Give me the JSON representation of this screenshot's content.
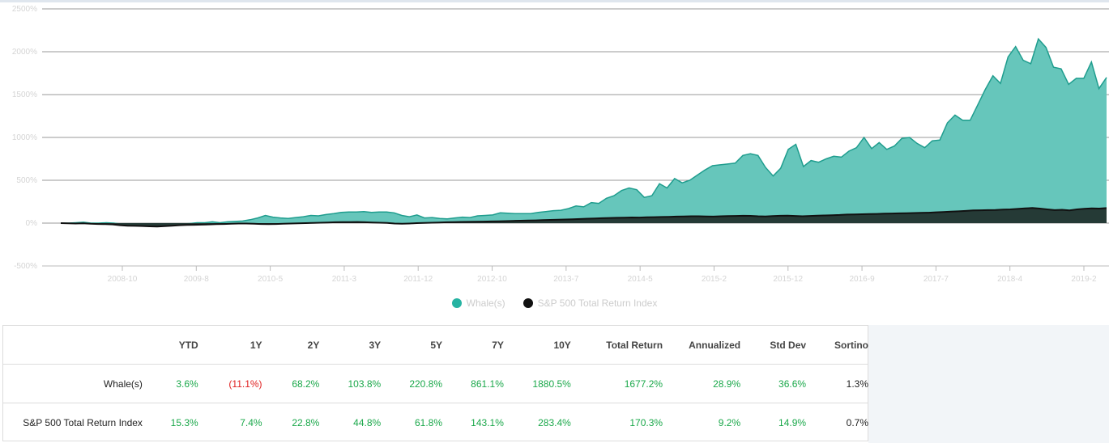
{
  "chart_data": {
    "type": "area",
    "title": "",
    "xlabel": "",
    "ylabel": "",
    "ylim": [
      -500,
      2500
    ],
    "y_ticks": [
      -500,
      0,
      500,
      1000,
      1500,
      2000,
      2500
    ],
    "y_tick_labels": [
      "-500%",
      "0%",
      "500%",
      "1000%",
      "1500%",
      "2000%",
      "2500%"
    ],
    "x_ticks": [
      "2008-10",
      "2009-8",
      "2010-5",
      "2011-3",
      "2011-12",
      "2012-10",
      "2013-7",
      "2014-5",
      "2015-2",
      "2015-12",
      "2016-9",
      "2017-7",
      "2018-4",
      "2019-2"
    ],
    "grid": "horizontal",
    "legend_position": "bottom",
    "series": [
      {
        "name": "Whale(s)",
        "color": "#66c6bb",
        "line_color": "#1f9d8e",
        "values": [
          0,
          0,
          5,
          10,
          0,
          0,
          5,
          0,
          -10,
          -10,
          -15,
          -10,
          -20,
          -25,
          -20,
          -15,
          -10,
          -5,
          5,
          5,
          15,
          5,
          15,
          20,
          25,
          40,
          60,
          90,
          70,
          60,
          55,
          65,
          75,
          90,
          85,
          100,
          110,
          125,
          130,
          130,
          135,
          125,
          130,
          130,
          120,
          90,
          75,
          95,
          60,
          65,
          55,
          50,
          60,
          70,
          65,
          85,
          90,
          95,
          120,
          115,
          110,
          110,
          110,
          125,
          135,
          145,
          150,
          170,
          200,
          190,
          240,
          230,
          290,
          320,
          380,
          410,
          390,
          300,
          320,
          460,
          410,
          520,
          470,
          500,
          560,
          620,
          670,
          680,
          690,
          700,
          790,
          810,
          790,
          650,
          550,
          640,
          860,
          920,
          660,
          730,
          710,
          750,
          780,
          770,
          840,
          880,
          1000,
          870,
          940,
          860,
          900,
          990,
          1000,
          930,
          880,
          960,
          970,
          1170,
          1260,
          1200,
          1200,
          1380,
          1560,
          1720,
          1630,
          1940,
          2060,
          1900,
          1860,
          2150,
          2050,
          1820,
          1800,
          1620,
          1690,
          1690,
          1880,
          1570,
          1700
        ],
        "start": "2008-1"
      },
      {
        "name": "S&P 500 Total Return Index",
        "color": "#253a36",
        "line_color": "#111111",
        "values": [
          0,
          -2,
          -5,
          -3,
          -8,
          -10,
          -12,
          -15,
          -25,
          -30,
          -32,
          -34,
          -38,
          -40,
          -35,
          -30,
          -25,
          -22,
          -20,
          -18,
          -15,
          -12,
          -10,
          -8,
          -5,
          -5,
          -8,
          -10,
          -12,
          -10,
          -8,
          -5,
          -3,
          0,
          2,
          5,
          8,
          10,
          12,
          12,
          13,
          10,
          8,
          5,
          2,
          -5,
          -8,
          -5,
          0,
          3,
          5,
          8,
          10,
          12,
          14,
          15,
          16,
          18,
          20,
          22,
          24,
          26,
          28,
          30,
          32,
          35,
          38,
          40,
          42,
          45,
          48,
          52,
          55,
          58,
          60,
          62,
          64,
          66,
          65,
          68,
          70,
          72,
          74,
          76,
          78,
          80,
          80,
          78,
          76,
          80,
          82,
          84,
          86,
          85,
          80,
          78,
          82,
          86,
          88,
          84,
          80,
          84,
          88,
          90,
          92,
          95,
          100,
          102,
          104,
          106,
          108,
          110,
          112,
          114,
          116,
          118,
          120,
          122,
          126,
          130,
          134,
          138,
          142,
          148,
          150,
          152,
          154,
          158,
          160,
          166,
          172,
          176,
          170,
          160,
          152,
          156,
          148,
          160,
          168,
          172,
          170,
          175
        ],
        "start": "2008-1"
      }
    ]
  },
  "table": {
    "headers": [
      "",
      "YTD",
      "1Y",
      "2Y",
      "3Y",
      "5Y",
      "7Y",
      "10Y",
      "Total Return",
      "Annualized",
      "Std Dev",
      "Sortino"
    ],
    "rows": [
      {
        "name": "Whale(s)",
        "cells": [
          {
            "v": "3.6%",
            "c": "pos"
          },
          {
            "v": "(11.1%)",
            "c": "neg"
          },
          {
            "v": "68.2%",
            "c": "pos"
          },
          {
            "v": "103.8%",
            "c": "pos"
          },
          {
            "v": "220.8%",
            "c": "pos"
          },
          {
            "v": "861.1%",
            "c": "pos"
          },
          {
            "v": "1880.5%",
            "c": "pos"
          },
          {
            "v": "1677.2%",
            "c": "pos"
          },
          {
            "v": "28.9%",
            "c": "pos"
          },
          {
            "v": "36.6%",
            "c": "pos"
          },
          {
            "v": "1.3%",
            "c": "neu"
          }
        ]
      },
      {
        "name": "S&P 500 Total Return Index",
        "cells": [
          {
            "v": "15.3%",
            "c": "pos"
          },
          {
            "v": "7.4%",
            "c": "pos"
          },
          {
            "v": "22.8%",
            "c": "pos"
          },
          {
            "v": "44.8%",
            "c": "pos"
          },
          {
            "v": "61.8%",
            "c": "pos"
          },
          {
            "v": "143.1%",
            "c": "pos"
          },
          {
            "v": "283.4%",
            "c": "pos"
          },
          {
            "v": "170.3%",
            "c": "pos"
          },
          {
            "v": "9.2%",
            "c": "pos"
          },
          {
            "v": "14.9%",
            "c": "pos"
          },
          {
            "v": "0.7%",
            "c": "neu"
          }
        ]
      }
    ]
  }
}
